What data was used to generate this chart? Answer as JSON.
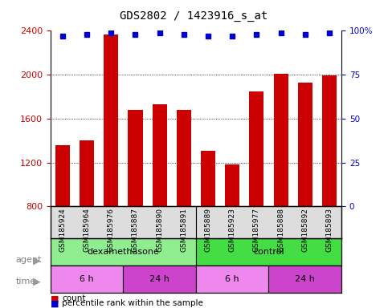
{
  "title": "GDS2802 / 1423916_s_at",
  "samples": [
    "GSM185924",
    "GSM185964",
    "GSM185976",
    "GSM185887",
    "GSM185890",
    "GSM185891",
    "GSM185889",
    "GSM185923",
    "GSM185977",
    "GSM185888",
    "GSM185892",
    "GSM185893"
  ],
  "counts": [
    1360,
    1400,
    2370,
    1680,
    1730,
    1680,
    1310,
    1180,
    1850,
    2010,
    1930,
    1990
  ],
  "percentile_ranks": [
    97,
    98,
    99,
    98,
    99,
    98,
    97,
    97,
    98,
    99,
    98,
    99
  ],
  "bar_color": "#cc0000",
  "dot_color": "#0000cc",
  "ylim_left": [
    800,
    2400
  ],
  "ylim_right": [
    0,
    100
  ],
  "yticks_left": [
    800,
    1200,
    1600,
    2000,
    2400
  ],
  "yticks_right": [
    0,
    25,
    50,
    75,
    100
  ],
  "agent_labels": [
    {
      "text": "dexamethasone",
      "start": 0,
      "end": 6,
      "color": "#90ee90"
    },
    {
      "text": "control",
      "start": 6,
      "end": 12,
      "color": "#44dd44"
    }
  ],
  "time_labels": [
    {
      "text": "6 h",
      "start": 0,
      "end": 3,
      "color": "#ee88ee"
    },
    {
      "text": "24 h",
      "start": 3,
      "end": 6,
      "color": "#cc44cc"
    },
    {
      "text": "6 h",
      "start": 6,
      "end": 9,
      "color": "#ee88ee"
    },
    {
      "text": "24 h",
      "start": 9,
      "end": 12,
      "color": "#cc44cc"
    }
  ],
  "legend_items": [
    {
      "color": "#cc0000",
      "label": "count"
    },
    {
      "color": "#0000cc",
      "label": "percentile rank within the sample"
    }
  ],
  "tick_label_fontsize": 7.5,
  "axis_label_color_left": "#cc0000",
  "axis_label_color_right": "#0000cc",
  "background_color": "#ffffff",
  "plot_bg_color": "#ffffff"
}
